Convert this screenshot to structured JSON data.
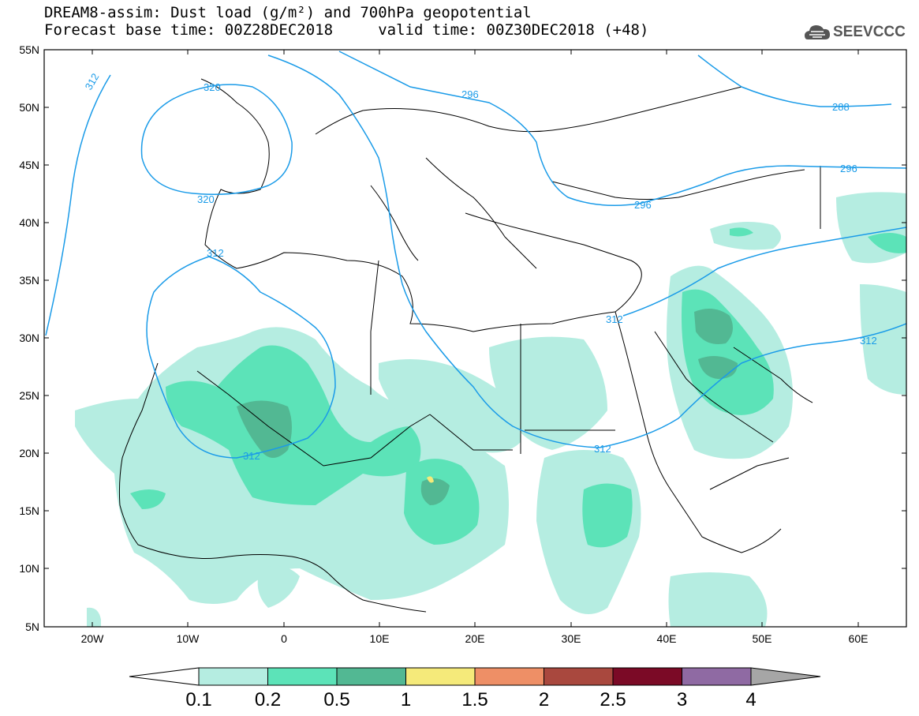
{
  "title_line1": "DREAM8-assim: Dust load (g/m²) and 700hPa geopotential",
  "title_line2": "Forecast base time: 00Z28DEC2018     valid time: 00Z30DEC2018 (+48)",
  "logo_text": "SEEVCCC",
  "lat_labels": [
    "55N",
    "50N",
    "45N",
    "40N",
    "35N",
    "30N",
    "25N",
    "20N",
    "15N",
    "10N",
    "5N"
  ],
  "lon_labels": [
    "20W",
    "10W",
    "0",
    "10E",
    "20E",
    "30E",
    "40E",
    "50E",
    "60E"
  ],
  "contour_labels": [
    "312",
    "320",
    "320",
    "312",
    "296",
    "288",
    "296",
    "296",
    "312",
    "312",
    "312"
  ],
  "colorbar": {
    "ticks": [
      "0.1",
      "0.2",
      "0.5",
      "1",
      "1.5",
      "2",
      "2.5",
      "3",
      "4"
    ],
    "colors": [
      "#b5ede1",
      "#5ce3b8",
      "#52b893",
      "#f5ea7a",
      "#ee8f66",
      "#a9483e",
      "#7b0a26",
      "#8f6aa3"
    ],
    "under_color": "#ffffff",
    "over_color": "#a6a6a6"
  },
  "colors": {
    "contour": "#1a9be8",
    "land_border": "#000000"
  }
}
